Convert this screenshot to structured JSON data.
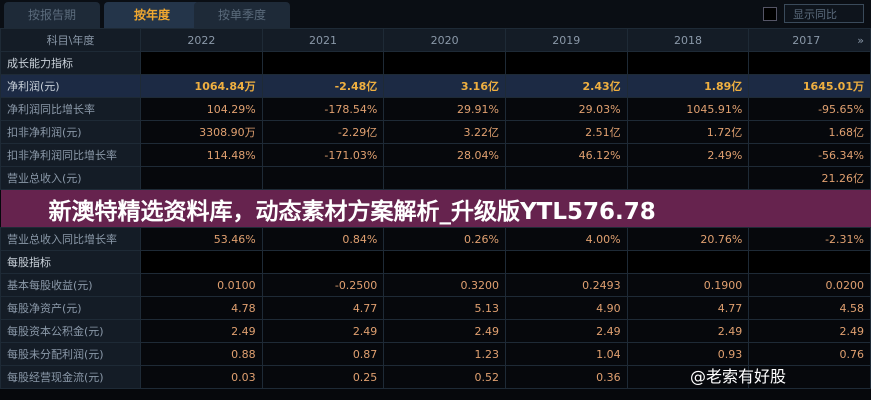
{
  "tabs": [
    "按报告期",
    "按年度",
    "按单季度"
  ],
  "active_tab": 1,
  "show_yoy": "显示同比",
  "header": {
    "label": "科目\\年度",
    "years": [
      "2022",
      "2021",
      "2020",
      "2019",
      "2018",
      "2017"
    ],
    "more": "»"
  },
  "rows": [
    {
      "label": "成长能力指标",
      "type": "sec",
      "values": [
        "",
        "",
        "",
        "",
        "",
        ""
      ]
    },
    {
      "label": "净利润(元)",
      "type": "hl",
      "values": [
        "1064.84万",
        "-2.48亿",
        "3.16亿",
        "2.43亿",
        "1.89亿",
        "1645.01万"
      ]
    },
    {
      "label": "净利润同比增长率",
      "values": [
        "104.29%",
        "-178.54%",
        "29.91%",
        "29.03%",
        "1045.91%",
        "-95.65%"
      ]
    },
    {
      "label": "扣非净利润(元)",
      "values": [
        "3308.90万",
        "-2.29亿",
        "3.22亿",
        "2.51亿",
        "1.72亿",
        "1.68亿"
      ]
    },
    {
      "label": "扣非净利润同比增长率",
      "values": [
        "114.48%",
        "-171.03%",
        "28.04%",
        "46.12%",
        "2.49%",
        "-56.34%"
      ]
    },
    {
      "label": "营业总收入(元)",
      "values": [
        "",
        "",
        "",
        "",
        "",
        "21.26亿"
      ]
    },
    {
      "label": "营业总收入同比增长率",
      "values": [
        "53.46%",
        "0.84%",
        "0.26%",
        "4.00%",
        "20.76%",
        "-2.31%"
      ]
    },
    {
      "label": "每股指标",
      "type": "sec",
      "values": [
        "",
        "",
        "",
        "",
        "",
        ""
      ]
    },
    {
      "label": "基本每股收益(元)",
      "values": [
        "0.0100",
        "-0.2500",
        "0.3200",
        "0.2493",
        "0.1900",
        "0.0200"
      ]
    },
    {
      "label": "每股净资产(元)",
      "values": [
        "4.78",
        "4.77",
        "5.13",
        "4.90",
        "4.77",
        "4.58"
      ]
    },
    {
      "label": "每股资本公积金(元)",
      "values": [
        "2.49",
        "2.49",
        "2.49",
        "2.49",
        "2.49",
        "2.49"
      ]
    },
    {
      "label": "每股未分配利润(元)",
      "values": [
        "0.88",
        "0.87",
        "1.23",
        "1.04",
        "0.93",
        "0.76"
      ]
    },
    {
      "label": "每股经营现金流(元)",
      "values": [
        "0.03",
        "0.25",
        "0.52",
        "0.36",
        "",
        ""
      ]
    }
  ],
  "banner": "新澳特精选资料库，动态素材方案解析_升级版YTL576.78",
  "watermark": "@老索有好股",
  "colors": {
    "accent": "#f0a830",
    "value": "#e0a070",
    "banner": "#78285a"
  }
}
